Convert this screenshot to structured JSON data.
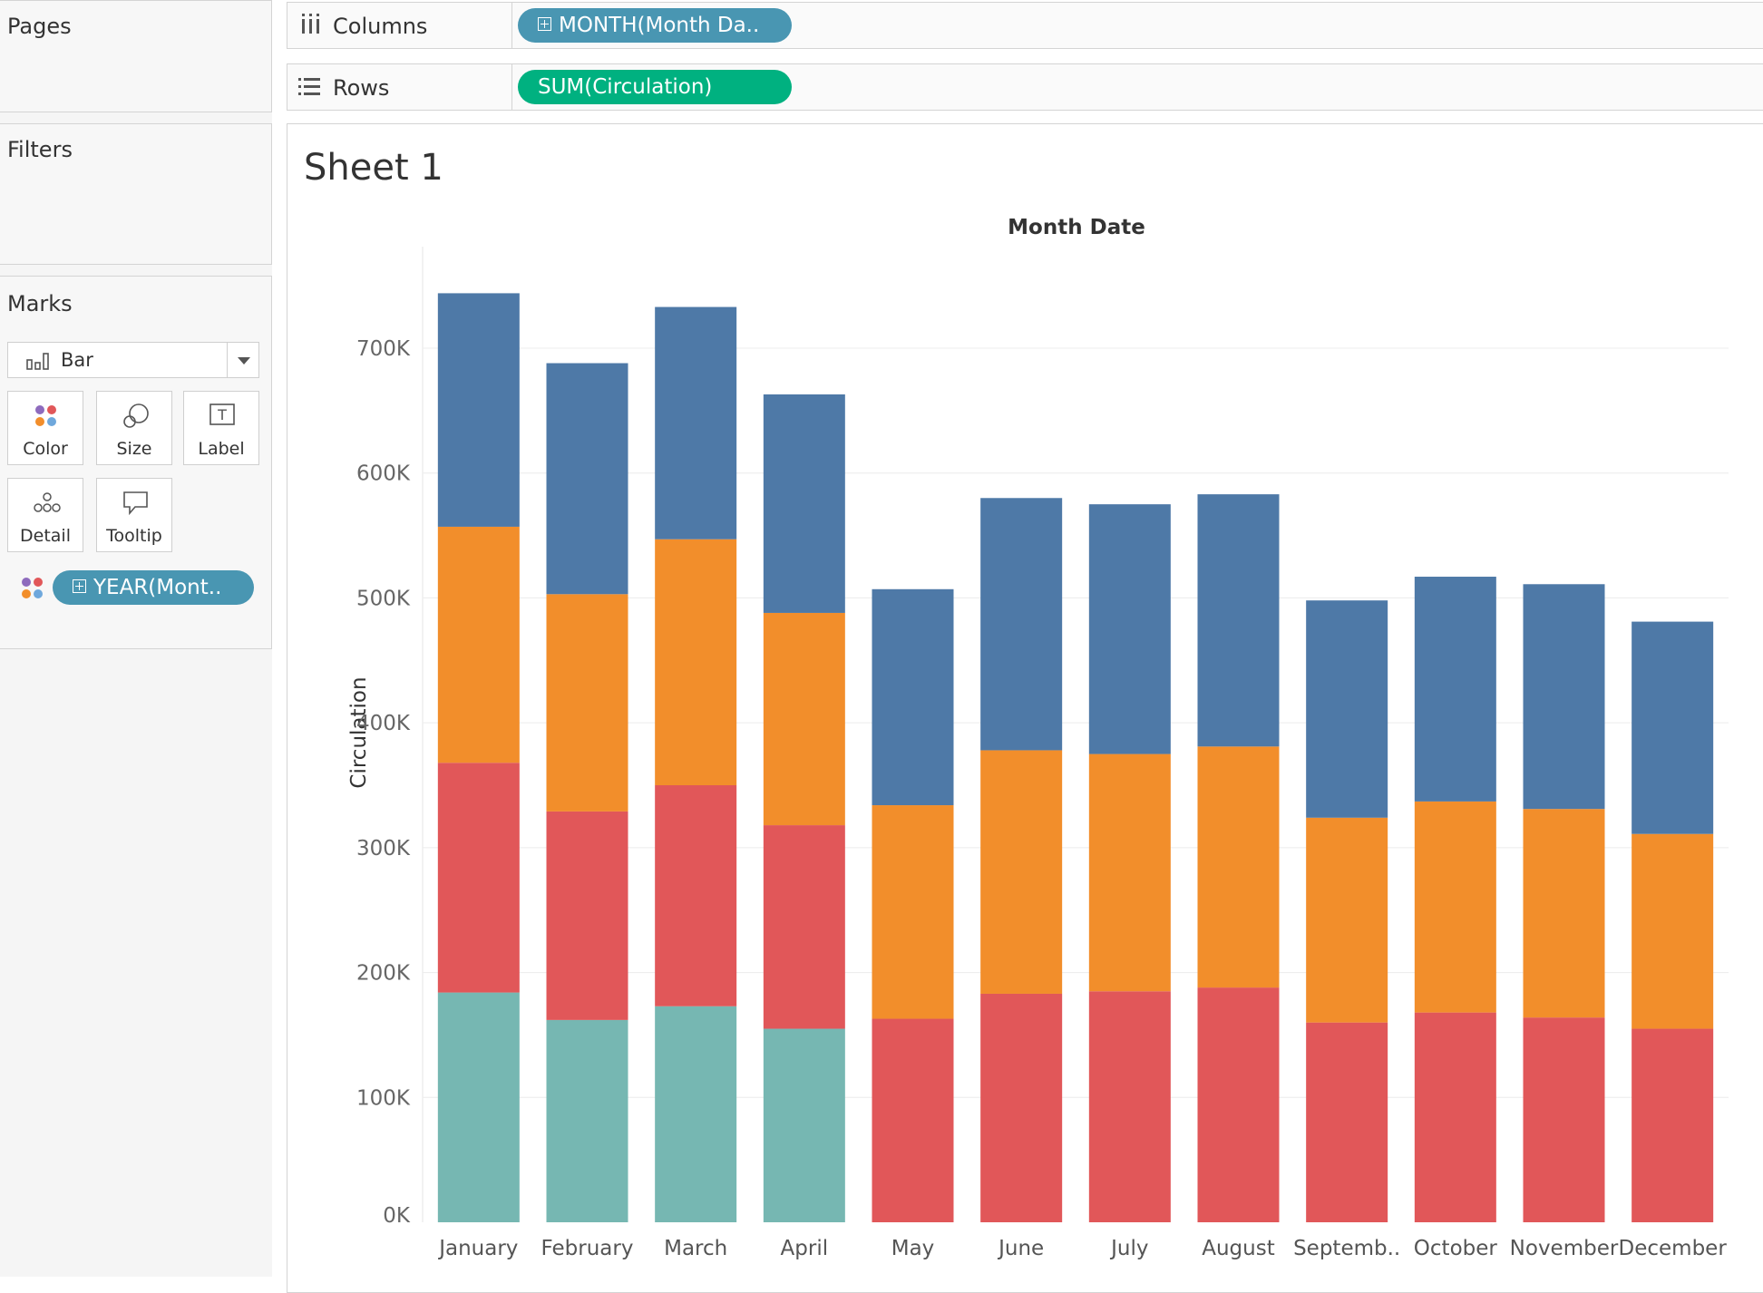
{
  "sidebar": {
    "pages_title": "Pages",
    "filters_title": "Filters",
    "marks_title": "Marks",
    "mark_type": "Bar",
    "mark_buttons": [
      {
        "label": "Color",
        "icon": "color-dots-icon"
      },
      {
        "label": "Size",
        "icon": "size-circles-icon"
      },
      {
        "label": "Label",
        "icon": "text-box-icon"
      },
      {
        "label": "Detail",
        "icon": "detail-dots-icon"
      },
      {
        "label": "Tooltip",
        "icon": "speech-bubble-icon"
      }
    ],
    "color_pill": "YEAR(Mont.."
  },
  "shelves": {
    "columns_label": "Columns",
    "columns_pill": "MONTH(Month Da..",
    "rows_label": "Rows",
    "rows_pill": "SUM(Circulation)"
  },
  "sheet": {
    "title": "Sheet 1"
  },
  "colors": {
    "series_teal": "#76b7b2",
    "series_red": "#e15759",
    "series_orange": "#f28e2b",
    "series_blue": "#4e79a7",
    "pill_blue": "#4996b2",
    "pill_green": "#00b180"
  },
  "chart_data": {
    "type": "bar",
    "stacked": true,
    "xlabel": "Month Date",
    "ylabel": "Circulation",
    "ylim": [
      0,
      780000
    ],
    "yticks": [
      "0K",
      "100K",
      "200K",
      "300K",
      "400K",
      "500K",
      "600K",
      "700K"
    ],
    "ytick_values": [
      0,
      100000,
      200000,
      300000,
      400000,
      500000,
      600000,
      700000
    ],
    "categories": [
      "January",
      "February",
      "March",
      "April",
      "May",
      "June",
      "July",
      "August",
      "Septemb..",
      "October",
      "November",
      "December"
    ],
    "series": [
      {
        "color": "#76b7b2",
        "values": [
          184000,
          162000,
          173000,
          155000,
          0,
          0,
          0,
          0,
          0,
          0,
          0,
          0
        ]
      },
      {
        "color": "#e15759",
        "values": [
          184000,
          167000,
          177000,
          163000,
          163000,
          183000,
          185000,
          188000,
          160000,
          168000,
          164000,
          155000
        ]
      },
      {
        "color": "#f28e2b",
        "values": [
          189000,
          174000,
          197000,
          170000,
          171000,
          195000,
          190000,
          193000,
          164000,
          169000,
          167000,
          156000
        ]
      },
      {
        "color": "#4e79a7",
        "values": [
          187000,
          185000,
          186000,
          175000,
          173000,
          202000,
          200000,
          202000,
          174000,
          180000,
          180000,
          170000
        ]
      }
    ]
  }
}
